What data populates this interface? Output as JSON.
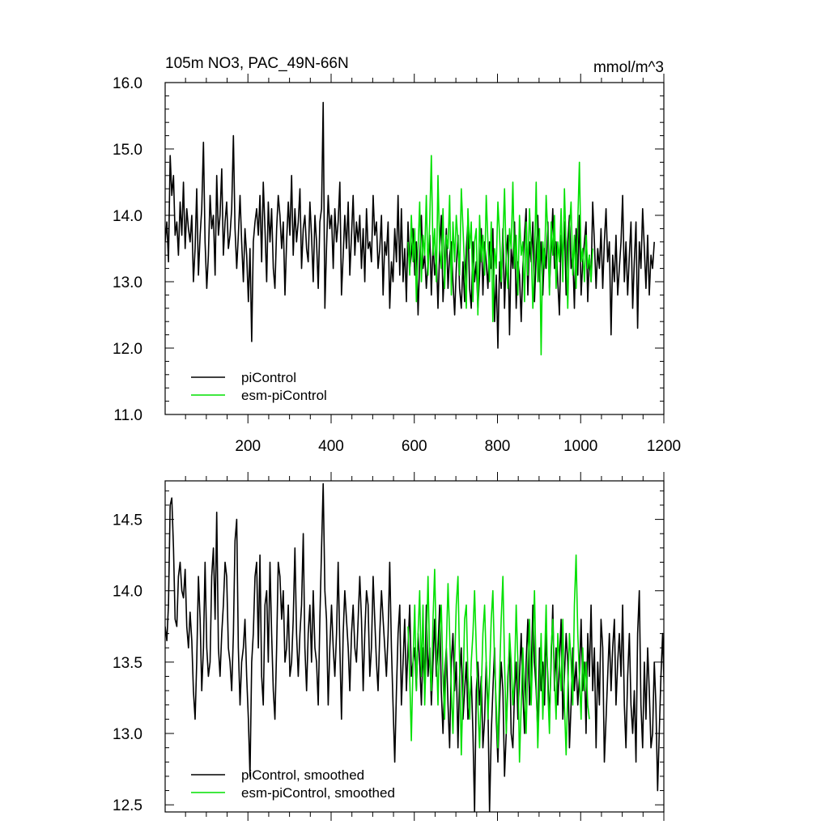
{
  "header": {
    "left_title": "105m NO3, PAC_49N-66N",
    "right_title": "mmol/m^3"
  },
  "colors": {
    "piControl": "#000000",
    "esm_piControl": "#00e000",
    "axis": "#000000"
  },
  "chart_data": [
    {
      "type": "line",
      "xlim": [
        1,
        1200
      ],
      "ylim": [
        11.0,
        16.0
      ],
      "x_ticks": [
        200,
        400,
        600,
        800,
        1000,
        1200
      ],
      "x_tick_labels": [
        "200",
        "400",
        "600",
        "800",
        "1000",
        "1200"
      ],
      "y_ticks": [
        11.0,
        12.0,
        13.0,
        14.0,
        15.0,
        16.0
      ],
      "y_tick_labels": [
        "11.0",
        "12.0",
        "13.0",
        "14.0",
        "15.0",
        "16.0"
      ],
      "legend_position": "bottom-left",
      "series": [
        {
          "name": "piControl",
          "color": "#000000",
          "x_start": 1,
          "x_step": 4,
          "values": [
            13.6,
            13.9,
            13.3,
            14.9,
            14.3,
            14.6,
            13.7,
            13.9,
            13.4,
            14.2,
            13.7,
            14.5,
            13.5,
            14.1,
            13.8,
            13.6,
            14.0,
            13.0,
            13.5,
            14.4,
            13.1,
            13.7,
            14.1,
            15.1,
            13.6,
            12.9,
            13.4,
            14.3,
            13.8,
            14.0,
            13.1,
            14.6,
            13.7,
            14.0,
            14.7,
            13.4,
            13.9,
            14.2,
            13.5,
            13.7,
            14.1,
            15.2,
            13.8,
            13.2,
            13.7,
            14.3,
            13.6,
            13.0,
            13.8,
            13.4,
            12.7,
            13.5,
            12.1,
            13.6,
            13.9,
            14.1,
            13.7,
            14.3,
            13.3,
            14.5,
            13.8,
            13.0,
            14.2,
            13.6,
            14.1,
            13.2,
            12.9,
            13.8,
            14.3,
            14.0,
            13.5,
            13.9,
            12.8,
            13.6,
            14.2,
            13.7,
            14.6,
            13.4,
            14.1,
            13.6,
            13.9,
            14.4,
            13.2,
            13.8,
            14.0,
            13.5,
            13.3,
            14.2,
            13.7,
            13.0,
            14.0,
            13.6,
            12.9,
            13.9,
            14.1,
            15.7,
            12.6,
            13.5,
            14.3,
            13.8,
            14.0,
            13.2,
            14.1,
            13.6,
            13.9,
            14.5,
            12.8,
            13.4,
            14.0,
            13.5,
            14.2,
            13.1,
            13.7,
            14.3,
            13.4,
            13.9,
            13.6,
            14.0,
            13.2,
            13.8,
            13.0,
            14.1,
            13.5,
            13.6,
            13.3,
            14.3,
            13.7,
            13.9,
            13.2,
            13.5,
            14.0,
            12.8,
            13.6,
            13.4,
            13.9,
            12.6,
            13.3,
            13.0,
            13.8,
            13.3,
            14.3,
            13.1,
            14.1,
            13.0,
            13.5,
            12.7,
            13.9,
            13.2,
            13.4,
            13.8,
            13.1,
            13.6,
            12.5,
            13.3,
            14.0,
            13.2,
            13.4,
            12.9,
            13.3,
            13.7,
            12.8,
            13.6,
            13.1,
            13.4,
            12.6,
            13.5,
            14.0,
            12.7,
            13.2,
            13.8,
            12.9,
            13.4,
            13.6,
            13.0,
            12.5,
            13.2,
            13.7,
            12.9,
            12.6,
            13.3,
            12.7,
            13.5,
            13.9,
            12.9,
            12.6,
            13.6,
            13.0,
            13.3,
            12.6,
            13.1,
            13.8,
            12.8,
            13.6,
            13.3,
            12.9,
            13.6,
            13.2,
            13.8,
            12.4,
            13.1,
            12.0,
            13.3,
            12.9,
            13.8,
            12.6,
            13.4,
            13.7,
            12.2,
            13.5,
            13.2,
            13.9,
            12.6,
            13.3,
            13.1,
            12.4,
            13.2,
            13.7,
            14.1,
            12.8,
            13.6,
            13.3,
            13.9,
            12.7,
            13.4,
            14.0,
            13.0,
            13.6,
            12.8,
            13.5,
            13.2,
            13.9,
            12.9,
            13.5,
            14.1,
            13.2,
            13.6,
            13.0,
            12.5,
            13.7,
            13.3,
            13.9,
            12.8,
            13.6,
            14.0,
            13.2,
            13.4,
            12.6,
            13.8,
            13.1,
            14.0,
            12.8,
            13.3,
            13.6,
            13.9,
            12.7,
            13.4,
            13.0,
            14.2,
            13.6,
            12.9,
            13.5,
            13.2,
            13.8,
            12.9,
            13.6,
            14.1,
            13.3,
            13.6,
            12.2,
            13.4,
            13.0,
            13.7,
            12.8,
            13.2,
            13.6,
            14.3,
            13.0,
            13.6,
            12.8,
            13.4,
            13.9,
            12.6,
            13.3,
            13.9,
            12.3,
            13.6,
            13.2,
            14.1,
            13.5,
            12.9,
            13.7,
            12.8,
            13.4,
            13.2,
            13.6
          ],
          "legend_label": "piControl"
        },
        {
          "name": "esm-piControl",
          "color": "#00e000",
          "x_start": 585,
          "x_step": 4,
          "values": [
            13.6,
            13.1,
            14.0,
            13.3,
            13.8,
            12.7,
            13.5,
            14.2,
            13.0,
            13.7,
            13.4,
            14.3,
            13.1,
            13.9,
            14.9,
            13.4,
            13.8,
            13.0,
            14.6,
            13.5,
            13.2,
            14.1,
            12.9,
            13.7,
            13.5,
            14.3,
            12.8,
            13.9,
            13.3,
            14.0,
            13.6,
            13.1,
            14.4,
            13.8,
            13.2,
            12.6,
            14.1,
            13.5,
            13.9,
            12.7,
            13.6,
            13.8,
            12.5,
            14.0,
            13.3,
            13.7,
            13.1,
            14.3,
            13.6,
            13.0,
            13.9,
            12.4,
            13.5,
            13.2,
            14.2,
            13.7,
            13.0,
            13.6,
            14.4,
            13.3,
            12.9,
            13.8,
            13.5,
            14.5,
            13.2,
            13.7,
            12.8,
            14.0,
            13.4,
            13.6,
            12.7,
            13.9,
            13.1,
            14.1,
            13.5,
            12.6,
            13.3,
            14.5,
            13.0,
            13.8,
            11.9,
            13.6,
            13.2,
            14.3,
            13.7,
            12.8,
            13.9,
            13.4,
            14.0,
            12.9,
            13.6,
            13.3,
            14.1,
            13.0,
            14.4,
            13.5,
            12.6,
            13.8,
            14.2,
            13.1,
            13.7,
            12.9,
            13.9,
            14.8,
            13.3,
            13.5,
            13.0,
            13.7,
            13.2,
            13.4,
            13.0,
            13.5
          ],
          "legend_label": "esm-piControl"
        }
      ]
    },
    {
      "type": "line",
      "xlim": [
        1,
        1200
      ],
      "ylim": [
        12.45,
        14.77
      ],
      "y_ticks": [
        12.5,
        13.0,
        13.5,
        14.0,
        14.5
      ],
      "y_tick_labels": [
        "12.5",
        "13.0",
        "13.5",
        "14.0",
        "14.5"
      ],
      "legend_position": "bottom-left",
      "series": [
        {
          "name": "piControl, smoothed",
          "color": "#000000",
          "x_start": 1,
          "x_step": 4,
          "values": [
            13.75,
            13.65,
            13.9,
            14.6,
            14.65,
            14.3,
            13.8,
            13.75,
            14.1,
            14.2,
            14.0,
            13.95,
            14.15,
            13.75,
            13.6,
            13.85,
            13.65,
            13.3,
            13.1,
            13.5,
            14.1,
            13.8,
            13.3,
            13.6,
            14.2,
            13.6,
            13.4,
            13.5,
            14.1,
            14.3,
            13.8,
            14.55,
            13.6,
            13.4,
            13.7,
            13.9,
            14.2,
            14.1,
            13.6,
            13.5,
            13.3,
            13.7,
            14.35,
            14.5,
            13.6,
            13.2,
            13.5,
            13.6,
            13.8,
            13.4,
            13.1,
            12.7,
            13.5,
            13.7,
            14.1,
            14.2,
            13.6,
            14.25,
            13.4,
            13.2,
            13.9,
            14.0,
            13.5,
            14.2,
            13.7,
            13.3,
            13.1,
            13.6,
            14.2,
            14.1,
            13.8,
            14.0,
            13.5,
            13.6,
            13.9,
            13.4,
            13.5,
            13.8,
            14.3,
            13.7,
            13.4,
            13.7,
            13.9,
            14.4,
            13.6,
            13.3,
            13.7,
            13.9,
            13.5,
            14.0,
            13.6,
            13.5,
            13.2,
            13.8,
            14.3,
            14.75,
            14.0,
            13.8,
            13.2,
            13.6,
            13.9,
            13.6,
            13.4,
            13.7,
            14.2,
            13.6,
            13.1,
            13.7,
            14.0,
            13.8,
            13.6,
            13.3,
            13.7,
            13.9,
            13.6,
            13.5,
            13.8,
            14.1,
            13.8,
            13.3,
            13.7,
            14.0,
            13.9,
            13.4,
            13.6,
            14.1,
            13.8,
            13.5,
            13.3,
            13.7,
            14.0,
            13.8,
            13.6,
            13.4,
            13.7,
            14.2,
            13.6,
            13.2,
            12.8,
            13.3,
            13.7,
            13.9,
            13.2,
            13.5,
            13.8,
            13.3,
            13.6,
            13.9,
            13.4,
            13.5,
            13.6,
            13.3,
            13.7,
            13.5,
            13.2,
            13.6,
            13.3,
            13.9,
            13.4,
            13.6,
            13.2,
            13.5,
            13.8,
            13.4,
            13.6,
            13.9,
            13.3,
            13.0,
            13.4,
            13.6,
            13.2,
            12.9,
            13.5,
            13.7,
            13.3,
            13.5,
            12.9,
            13.4,
            13.6,
            13.1,
            13.3,
            13.5,
            13.1,
            13.2,
            13.4,
            13.0,
            12.45,
            13.3,
            13.5,
            13.2,
            13.4,
            12.9,
            13.1,
            13.5,
            13.2,
            12.45,
            13.0,
            13.3,
            13.6,
            13.1,
            12.8,
            13.2,
            13.5,
            13.3,
            12.7,
            13.0,
            13.4,
            13.6,
            13.0,
            12.9,
            13.3,
            13.5,
            13.1,
            13.4,
            13.7,
            13.3,
            13.0,
            13.5,
            13.8,
            13.2,
            13.4,
            13.9,
            13.5,
            13.3,
            13.0,
            13.6,
            13.3,
            13.5,
            13.2,
            13.7,
            13.4,
            13.1,
            13.5,
            13.9,
            13.3,
            13.6,
            13.2,
            13.5,
            13.8,
            13.1,
            13.4,
            13.7,
            13.5,
            12.9,
            13.2,
            13.6,
            13.3,
            13.5,
            13.2,
            13.4,
            13.8,
            13.3,
            13.5,
            13.0,
            13.7,
            13.4,
            13.9,
            13.3,
            13.6,
            12.9,
            13.5,
            13.2,
            13.8,
            13.6,
            12.8,
            13.1,
            13.4,
            13.7,
            13.3,
            13.6,
            13.8,
            13.2,
            13.5,
            13.7,
            13.4,
            13.9,
            13.2,
            12.9,
            13.4,
            13.7,
            13.2,
            13.0,
            13.3,
            12.8,
            13.7,
            14.0,
            13.2,
            12.9,
            13.5,
            13.1,
            13.6,
            13.3,
            12.9,
            13.0,
            13.5,
            13.2,
            12.6,
            13.0,
            13.4,
            13.7,
            13.3,
            13.0,
            13.3
          ],
          "legend_label": "piControl, smoothed"
        },
        {
          "name": "esm-piControl, smoothed",
          "color": "#00e000",
          "x_start": 585,
          "x_step": 4,
          "values": [
            13.75,
            13.4,
            12.95,
            13.5,
            13.9,
            13.3,
            13.7,
            14.0,
            13.4,
            13.9,
            13.2,
            13.6,
            14.1,
            13.5,
            13.3,
            13.8,
            14.15,
            13.6,
            13.2,
            13.7,
            13.9,
            13.4,
            13.1,
            13.6,
            14.05,
            13.7,
            13.3,
            13.0,
            13.5,
            13.9,
            14.1,
            13.5,
            12.85,
            13.3,
            13.8,
            13.9,
            13.4,
            13.1,
            13.5,
            13.7,
            14.0,
            13.6,
            13.2,
            12.9,
            13.3,
            13.7,
            13.9,
            13.5,
            13.1,
            13.4,
            13.8,
            14.0,
            13.5,
            13.2,
            12.9,
            13.4,
            13.8,
            14.1,
            13.5,
            13.0,
            13.3,
            13.7,
            13.5,
            13.2,
            13.4,
            13.9,
            13.5,
            12.8,
            13.2,
            13.6,
            13.3,
            13.0,
            13.5,
            13.8,
            13.2,
            13.6,
            14.0,
            13.4,
            12.9,
            13.3,
            13.7,
            13.1,
            13.5,
            13.9,
            13.3,
            13.0,
            13.6,
            13.8,
            13.4,
            13.1,
            13.7,
            13.5,
            13.3,
            13.8,
            13.2,
            12.85,
            13.3,
            13.7,
            13.5,
            13.2,
            13.9,
            14.25,
            13.7,
            13.4,
            13.1,
            13.6,
            13.3,
            13.5,
            13.2,
            13.1
          ],
          "legend_label": "esm-piControl, smoothed"
        }
      ]
    }
  ]
}
